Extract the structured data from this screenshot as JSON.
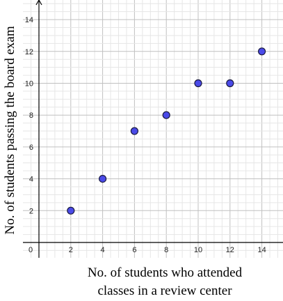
{
  "chart_data": {
    "type": "scatter",
    "title": "",
    "xlabel_lines": [
      "No. of students who attended",
      "classes in a review center"
    ],
    "ylabel": "No. of students passing the board exam",
    "x_ticks": [
      "0",
      "2",
      "4",
      "6",
      "8",
      "10",
      "12",
      "14"
    ],
    "y_ticks": [
      "2",
      "4",
      "6",
      "8",
      "10",
      "12",
      "14"
    ],
    "xlim": [
      -0.5,
      15.4
    ],
    "ylim": [
      -0.5,
      15.4
    ],
    "grid": true,
    "points": [
      {
        "x": 2,
        "y": 2
      },
      {
        "x": 4,
        "y": 4
      },
      {
        "x": 6,
        "y": 7
      },
      {
        "x": 8,
        "y": 8
      },
      {
        "x": 10,
        "y": 10
      },
      {
        "x": 12,
        "y": 10
      },
      {
        "x": 14,
        "y": 12
      }
    ],
    "marker_color": "#4a4ae8",
    "marker_edge_color": "#1a1a40",
    "grid_major_color": "#c0c0c0",
    "grid_minor_color": "#e6e6e6"
  }
}
